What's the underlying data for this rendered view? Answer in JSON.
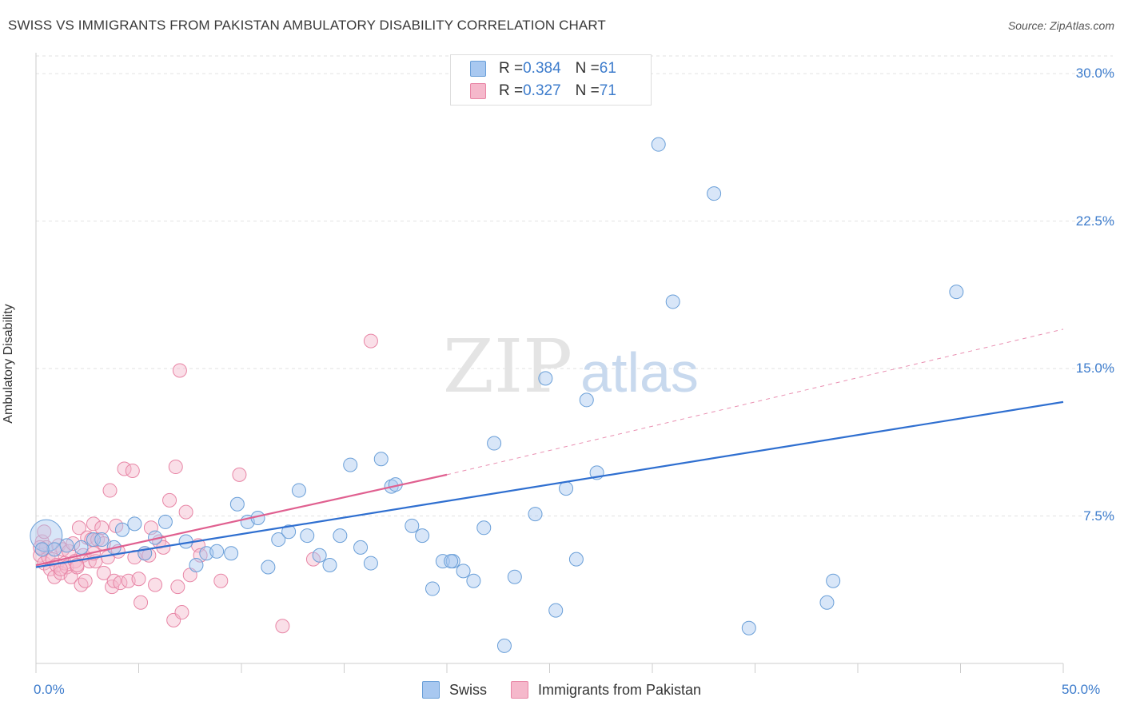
{
  "title": "SWISS VS IMMIGRANTS FROM PAKISTAN AMBULATORY DISABILITY CORRELATION CHART",
  "source": "Source: ZipAtlas.com",
  "watermark": {
    "zip": "ZIP",
    "atlas": "atlas"
  },
  "legend": {
    "swiss": {
      "r_label": "R = ",
      "r_value": "0.384",
      "n_label": "N = ",
      "n_value": "61"
    },
    "pakistan": {
      "r_label": "R = ",
      "r_value": "0.327",
      "n_label": "N = ",
      "n_value": "71"
    }
  },
  "colors": {
    "swiss_fill": "#a8c8f0",
    "swiss_stroke": "#6a9fd8",
    "swiss_line": "#2f6fd0",
    "pakistan_fill": "#f5b8cb",
    "pakistan_stroke": "#e886a6",
    "pakistan_line": "#e06090",
    "tick_text": "#3d7ccc",
    "grid": "#e2e2e2"
  },
  "chart_data": {
    "type": "scatter",
    "title": "SWISS VS IMMIGRANTS FROM PAKISTAN AMBULATORY DISABILITY CORRELATION CHART",
    "xlabel": "",
    "ylabel": "Ambulatory Disability",
    "xlim": [
      0,
      50
    ],
    "ylim": [
      0,
      30.9
    ],
    "x_tick_labels": [
      "0.0%",
      "50.0%"
    ],
    "y_ticks": [
      7.5,
      15.0,
      22.5,
      30.0
    ],
    "y_tick_labels": [
      "7.5%",
      "15.0%",
      "22.5%",
      "30.0%"
    ],
    "grid": true,
    "legend_position": "top-center",
    "series": [
      {
        "name": "Swiss",
        "points": [
          [
            0.5,
            6.5
          ],
          [
            0.9,
            5.8
          ],
          [
            1.5,
            6.0
          ],
          [
            2.2,
            5.9
          ],
          [
            2.8,
            6.3
          ],
          [
            3.2,
            6.3
          ],
          [
            3.8,
            5.9
          ],
          [
            4.2,
            6.8
          ],
          [
            4.8,
            7.1
          ],
          [
            5.3,
            5.6
          ],
          [
            5.8,
            6.4
          ],
          [
            6.3,
            7.2
          ],
          [
            7.3,
            6.2
          ],
          [
            7.8,
            5.0
          ],
          [
            8.3,
            5.6
          ],
          [
            8.8,
            5.7
          ],
          [
            9.5,
            5.6
          ],
          [
            9.8,
            8.1
          ],
          [
            10.3,
            7.2
          ],
          [
            10.8,
            7.4
          ],
          [
            11.3,
            4.9
          ],
          [
            11.8,
            6.3
          ],
          [
            12.3,
            6.7
          ],
          [
            12.8,
            8.8
          ],
          [
            13.2,
            6.5
          ],
          [
            13.8,
            5.5
          ],
          [
            14.3,
            5.0
          ],
          [
            14.8,
            6.5
          ],
          [
            15.3,
            10.1
          ],
          [
            15.8,
            5.9
          ],
          [
            16.3,
            5.1
          ],
          [
            16.8,
            10.4
          ],
          [
            17.3,
            9.0
          ],
          [
            17.5,
            9.1
          ],
          [
            18.3,
            7.0
          ],
          [
            18.8,
            6.5
          ],
          [
            19.3,
            3.8
          ],
          [
            19.8,
            5.2
          ],
          [
            20.3,
            5.2
          ],
          [
            20.8,
            4.7
          ],
          [
            21.3,
            4.2
          ],
          [
            21.8,
            6.9
          ],
          [
            22.3,
            11.2
          ],
          [
            22.8,
            0.9
          ],
          [
            23.3,
            4.4
          ],
          [
            24.3,
            7.6
          ],
          [
            24.8,
            14.5
          ],
          [
            25.3,
            2.7
          ],
          [
            25.8,
            8.9
          ],
          [
            26.3,
            5.3
          ],
          [
            26.8,
            13.4
          ],
          [
            27.3,
            9.7
          ],
          [
            30.3,
            26.4
          ],
          [
            31.0,
            18.4
          ],
          [
            33.0,
            23.9
          ],
          [
            34.7,
            1.8
          ],
          [
            38.5,
            3.1
          ],
          [
            38.8,
            4.2
          ],
          [
            44.8,
            18.9
          ],
          [
            20.2,
            5.2
          ],
          [
            0.3,
            5.8
          ]
        ]
      },
      {
        "name": "Immigrants from Pakistan",
        "points": [
          [
            0.2,
            5.5
          ],
          [
            0.3,
            6.2
          ],
          [
            0.4,
            5.1
          ],
          [
            0.5,
            5.9
          ],
          [
            0.6,
            5.4
          ],
          [
            0.7,
            4.8
          ],
          [
            0.8,
            5.3
          ],
          [
            0.9,
            4.4
          ],
          [
            1.0,
            5.0
          ],
          [
            1.1,
            6.0
          ],
          [
            1.2,
            4.6
          ],
          [
            1.3,
            5.8
          ],
          [
            1.4,
            5.1
          ],
          [
            1.5,
            4.9
          ],
          [
            1.6,
            5.7
          ],
          [
            1.7,
            4.4
          ],
          [
            1.8,
            6.1
          ],
          [
            1.9,
            5.2
          ],
          [
            2.0,
            4.9
          ],
          [
            2.1,
            6.9
          ],
          [
            2.2,
            4.0
          ],
          [
            2.3,
            5.5
          ],
          [
            2.4,
            4.2
          ],
          [
            2.5,
            6.4
          ],
          [
            2.6,
            5.2
          ],
          [
            2.7,
            6.3
          ],
          [
            2.8,
            7.1
          ],
          [
            2.9,
            5.2
          ],
          [
            3.0,
            6.3
          ],
          [
            3.2,
            6.9
          ],
          [
            3.3,
            4.6
          ],
          [
            3.5,
            5.4
          ],
          [
            3.6,
            8.8
          ],
          [
            3.7,
            3.9
          ],
          [
            3.8,
            4.2
          ],
          [
            3.9,
            7.0
          ],
          [
            4.0,
            5.7
          ],
          [
            4.1,
            4.1
          ],
          [
            4.3,
            9.9
          ],
          [
            4.5,
            4.2
          ],
          [
            4.7,
            9.8
          ],
          [
            4.8,
            5.4
          ],
          [
            5.0,
            4.3
          ],
          [
            5.1,
            3.1
          ],
          [
            5.3,
            5.6
          ],
          [
            5.5,
            5.5
          ],
          [
            5.6,
            6.9
          ],
          [
            5.8,
            4.0
          ],
          [
            6.0,
            6.2
          ],
          [
            6.2,
            5.9
          ],
          [
            6.5,
            8.3
          ],
          [
            6.7,
            2.2
          ],
          [
            6.8,
            10.0
          ],
          [
            6.9,
            3.9
          ],
          [
            7.0,
            14.9
          ],
          [
            7.1,
            2.6
          ],
          [
            7.3,
            7.7
          ],
          [
            7.5,
            4.5
          ],
          [
            7.9,
            6.0
          ],
          [
            8.0,
            5.5
          ],
          [
            9.0,
            4.2
          ],
          [
            9.9,
            9.6
          ],
          [
            12.0,
            1.9
          ],
          [
            13.5,
            5.3
          ],
          [
            16.3,
            16.4
          ],
          [
            0.2,
            5.9
          ],
          [
            1.2,
            4.8
          ],
          [
            2.0,
            5.0
          ],
          [
            2.8,
            5.6
          ],
          [
            3.3,
            6.1
          ],
          [
            0.4,
            6.7
          ]
        ]
      }
    ],
    "trendlines": [
      {
        "series": "Swiss",
        "x": [
          0,
          50
        ],
        "y": [
          4.9,
          13.3
        ],
        "style": "solid"
      },
      {
        "series": "Immigrants from Pakistan",
        "x": [
          0,
          20
        ],
        "y": [
          5.0,
          9.6
        ],
        "style": "solid"
      },
      {
        "series": "Immigrants from Pakistan",
        "x": [
          20,
          50
        ],
        "y": [
          9.6,
          17.0
        ],
        "style": "dashed"
      }
    ]
  },
  "bottom_legend": {
    "swiss": "Swiss",
    "pakistan": "Immigrants from Pakistan"
  }
}
